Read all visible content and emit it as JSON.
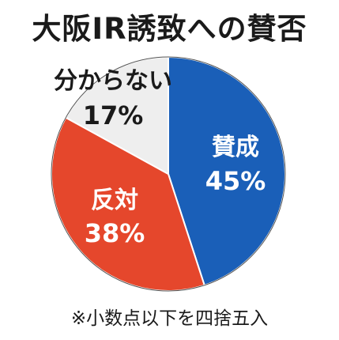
{
  "chart_data": {
    "type": "pie",
    "title": "大阪IR誘致への賛否",
    "slices": [
      {
        "label": "賛成",
        "value": 45,
        "display": "45%",
        "color": "#1a5fb8",
        "text_color": "#ffffff"
      },
      {
        "label": "反対",
        "value": 38,
        "display": "38%",
        "color": "#e5472c",
        "text_color": "#ffffff"
      },
      {
        "label": "分からない",
        "value": 17,
        "display": "17%",
        "color": "#eeeeee",
        "text_color": "#1a1a1a"
      }
    ],
    "legend": "none",
    "footnote": "※小数点以下を四捨五入"
  }
}
